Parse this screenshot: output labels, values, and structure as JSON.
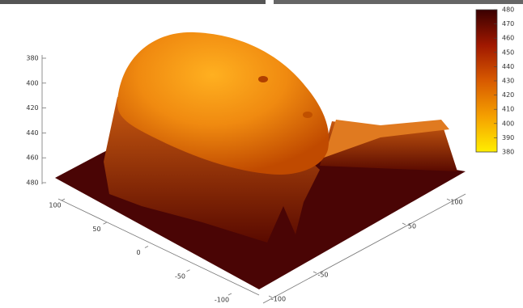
{
  "chart_data": {
    "type": "surface",
    "xlim": [
      100,
      -100
    ],
    "xticks": [
      100,
      50,
      0,
      -50,
      -100
    ],
    "ylim": [
      -100,
      100
    ],
    "yticks": [
      -100,
      -50,
      50,
      100
    ],
    "zlim": [
      380,
      480
    ],
    "zticks": [
      380,
      400,
      420,
      440,
      460,
      480
    ],
    "colorbar": {
      "lim": [
        380,
        480
      ],
      "ticks": [
        380,
        390,
        400,
        410,
        420,
        430,
        440,
        450,
        460,
        470,
        480
      ],
      "colors": [
        "#ffee00",
        "#f5a000",
        "#d85a00",
        "#a01800",
        "#3a0000"
      ]
    }
  }
}
